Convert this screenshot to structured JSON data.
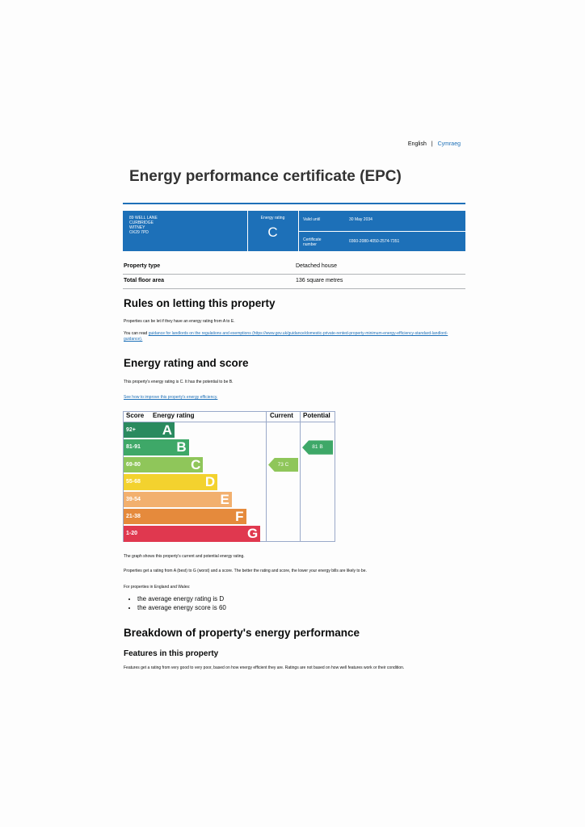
{
  "header": {
    "languages": [
      "English",
      "Cymraeg"
    ],
    "title": "Energy performance certificate (EPC)"
  },
  "summary": {
    "address": [
      "89 WELL LANE",
      "CURBRIDGE",
      "WITNEY",
      "OX29 7PD"
    ],
    "rating_label": "Energy rating",
    "rating": "C",
    "valid_until_label": "Valid until",
    "valid_until": "30 May 2034",
    "certificate_label": "Certificate number",
    "certificate_number": "0360-2080-4050-2574-7351"
  },
  "property": {
    "rows": [
      [
        "Property type",
        "Detached house"
      ],
      [
        "Total floor area",
        "136 square metres"
      ]
    ]
  },
  "letting": {
    "heading": "Rules on letting this property",
    "paragraphs": [
      "Properties can be let if they have an energy rating from A to E."
    ],
    "guidance_prefix": "You can read",
    "guidance_link": "guidance for landlords on the regulations and exemptions (https://www.gov.uk/guidance/domestic-private-rented-property-minimum-energy-efficiency-standard-landlord-guidance)."
  },
  "rating_section": {
    "heading": "Energy rating and score",
    "summary": "This property's energy rating is C. It has the potential to be B.",
    "improve_link": "See how to improve this property's energy efficiency.",
    "chart": {
      "headers": [
        "Score",
        "Energy rating",
        "Current",
        "Potential"
      ],
      "bands": [
        {
          "score": "92+",
          "letter": "A",
          "color": "#2a8a5f"
        },
        {
          "score": "81-91",
          "letter": "B",
          "color": "#3ea868"
        },
        {
          "score": "69-80",
          "letter": "C",
          "color": "#8fc65a"
        },
        {
          "score": "55-68",
          "letter": "D",
          "color": "#f3d22e"
        },
        {
          "score": "39-54",
          "letter": "E",
          "color": "#f2b06e"
        },
        {
          "score": "21-38",
          "letter": "F",
          "color": "#e58a3c"
        },
        {
          "score": "1-20",
          "letter": "G",
          "color": "#e0384f"
        }
      ],
      "current": {
        "score": "73",
        "band": "C"
      },
      "potential": {
        "score": "81",
        "band": "B"
      }
    },
    "notes": [
      "The graph shows this property's current and potential energy rating.",
      "Properties get a rating from A (best) to G (worst) and a score. The better the rating and score, the lower your energy bills are likely to be.",
      "For properties in England and Wales:"
    ],
    "averages": [
      "the average energy rating is D",
      "the average energy score is 60"
    ]
  },
  "breakdown": {
    "heading": "Breakdown of property's energy performance",
    "subheading": "Features in this property",
    "text": "Features get a rating from very good to very poor, based on how energy efficient they are. Ratings are not based on how well features work or their condition."
  }
}
